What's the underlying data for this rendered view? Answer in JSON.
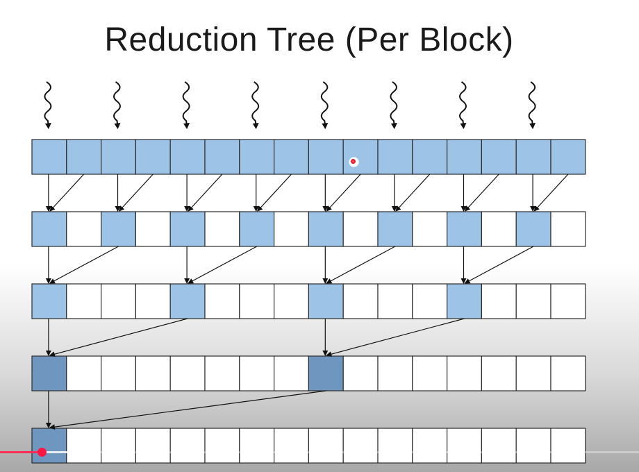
{
  "slide": {
    "title": "Reduction Tree (Per Block)"
  },
  "diagram": {
    "cells_per_row": 16,
    "row_count": 5,
    "threads": 8,
    "levels": [
      {
        "active_stride": 1,
        "filled_stride": 1
      },
      {
        "active_stride": 2,
        "filled_stride": 2
      },
      {
        "active_stride": 4,
        "filled_stride": 4
      },
      {
        "active_stride": 8,
        "filled_stride": 8
      },
      {
        "active_stride": 16,
        "filled_stride": 16
      }
    ],
    "colors": {
      "cell_fill": "#9dc3e6",
      "cell_fill_dark": "#6f96be",
      "cell_empty": "#ffffff",
      "cell_stroke": "#2b2b2b",
      "arrow": "#111111"
    }
  },
  "player": {
    "progress_fraction": 0.065,
    "buffered_fraction": 0.12,
    "colors": {
      "played": "#ff2c55",
      "scrubber": "#ff1744"
    }
  }
}
